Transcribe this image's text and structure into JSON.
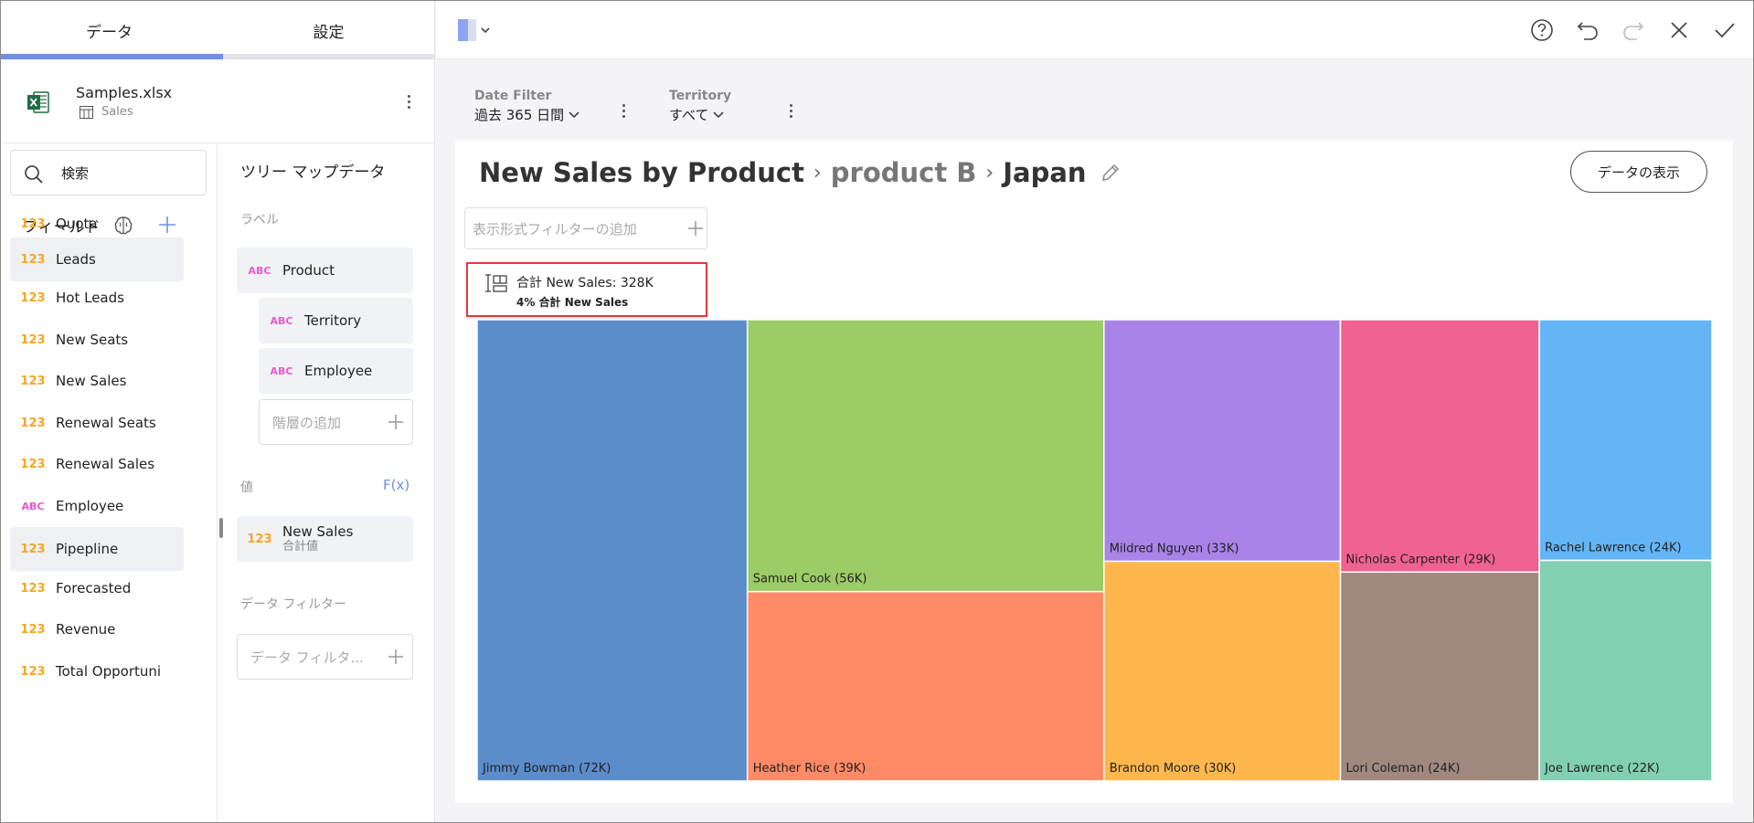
{
  "tabs": [
    {
      "label": "データ"
    },
    {
      "label": "設定"
    }
  ],
  "datasource": {
    "file": "Samples.xlsx",
    "sheet": "Sales"
  },
  "search": {
    "placeholder": "検索"
  },
  "fields_label": "フィールド",
  "fields": [
    {
      "type": "123",
      "name": "Quota"
    },
    {
      "type": "123",
      "name": "Leads"
    },
    {
      "type": "123",
      "name": "Hot Leads"
    },
    {
      "type": "123",
      "name": "New Seats"
    },
    {
      "type": "123",
      "name": "New Sales"
    },
    {
      "type": "123",
      "name": "Renewal Seats"
    },
    {
      "type": "123",
      "name": "Renewal Sales"
    },
    {
      "type": "ABC",
      "name": "Employee"
    },
    {
      "type": "123",
      "name": "Pipepline"
    },
    {
      "type": "123",
      "name": "Forecasted"
    },
    {
      "type": "123",
      "name": "Revenue"
    },
    {
      "type": "123",
      "name": "Total Opportuni"
    }
  ],
  "config": {
    "title": "ツリー マップデータ",
    "labels_label": "ラベル",
    "labels": [
      {
        "type": "ABC",
        "name": "Product"
      },
      {
        "type": "ABC",
        "name": "Territory"
      },
      {
        "type": "ABC",
        "name": "Employee"
      }
    ],
    "add_hierarchy": "階層の追加",
    "values_label": "値",
    "fx": "F(x)",
    "value": {
      "type": "123",
      "name": "New Sales",
      "agg": "合計値"
    },
    "data_filter_label": "データ フィルター",
    "data_filter_placeholder": "データ フィルタ..."
  },
  "filters": [
    {
      "label": "Date Filter",
      "value": "過去 365 日間"
    },
    {
      "label": "Territory",
      "value": "すべて"
    }
  ],
  "card": {
    "title": "New Sales by Product",
    "crumb_mid": "product B",
    "crumb_last": "Japan",
    "show_data": "データの表示",
    "viz_filter_placeholder": "表示形式フィルターの追加"
  },
  "tooltip": {
    "main": "合計 New Sales: 328K",
    "sub": "4% 合計 New Sales"
  },
  "chart_data": {
    "type": "treemap",
    "items": [
      {
        "label": "Jimmy Bowman (72K)",
        "value": 72,
        "color": "#5b8dcb"
      },
      {
        "label": "Samuel Cook (56K)",
        "value": 56,
        "color": "#9ccc65"
      },
      {
        "label": "Heather Rice (39K)",
        "value": 39,
        "color": "#ff8a65"
      },
      {
        "label": "Mildred Nguyen (33K)",
        "value": 33,
        "color": "#a983e8"
      },
      {
        "label": "Brandon Moore (30K)",
        "value": 30,
        "color": "#ffb74d"
      },
      {
        "label": "Nicholas Carpenter (29K)",
        "value": 29,
        "color": "#f06292"
      },
      {
        "label": "Lori Coleman (24K)",
        "value": 24,
        "color": "#a1887f"
      },
      {
        "label": "Rachel Lawrence (24K)",
        "value": 24,
        "color": "#64b5f6"
      },
      {
        "label": "Joe Lawrence (22K)",
        "value": 22,
        "color": "#81d0b4"
      }
    ]
  }
}
